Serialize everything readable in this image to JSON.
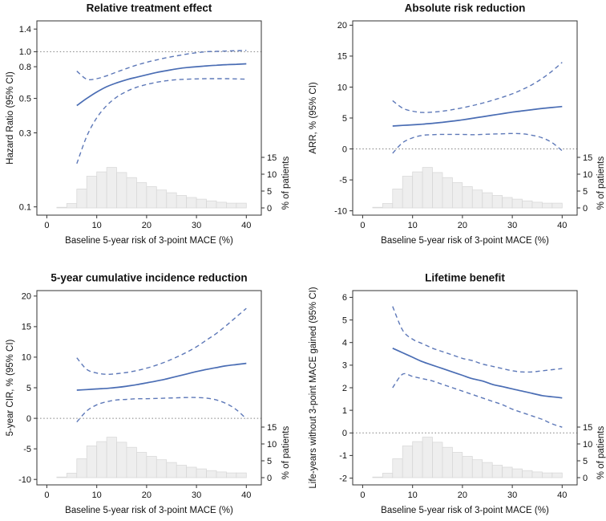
{
  "colors": {
    "line": "#4a6db4",
    "ci": "#5d78b8",
    "refline": "#808080",
    "hist_fill": "#eeeeee",
    "hist_stroke": "#d8d8d8",
    "border": "#333333",
    "text": "#111111"
  },
  "chart_data": {
    "layout": "2x2",
    "shared": {
      "xlabel": "Baseline 5-year risk of 3-point MACE (%)",
      "xticks": [
        0,
        10,
        20,
        30,
        40
      ],
      "xlim": [
        -2,
        43
      ],
      "x_values": [
        6,
        8,
        10,
        12,
        14,
        16,
        18,
        20,
        22,
        24,
        26,
        28,
        30,
        32,
        34,
        36,
        38,
        40
      ],
      "secondary_axis": {
        "label": "% of patients",
        "ticks": [
          0,
          5,
          10,
          15
        ]
      },
      "histogram": {
        "unit": "% of patients",
        "bin_start": 2,
        "bin_width": 2,
        "values": [
          0.2,
          1.3,
          5.6,
          9.4,
          10.7,
          12.0,
          10.5,
          9.0,
          7.5,
          6.3,
          5.3,
          4.5,
          3.7,
          3.1,
          2.6,
          2.1,
          1.7,
          1.4,
          1.4
        ]
      }
    },
    "panels": [
      {
        "type": "line",
        "title": "Relative treatment effect",
        "ylabel": "Hazard Ratio (95% CI)",
        "yscale": "log",
        "ylim": [
          0.0885,
          1.58
        ],
        "ytick_values": [
          1.4,
          1.0,
          0.8,
          0.5,
          0.3,
          0.1
        ],
        "ytick_labels": [
          "1.4",
          "1.0",
          "0.8",
          "0.5",
          "0.3",
          "0.1"
        ],
        "refline": 1.0,
        "series": [
          {
            "name": "point-estimate",
            "line": "solid",
            "y": [
              0.45,
              0.5,
              0.55,
              0.595,
              0.63,
              0.66,
              0.685,
              0.71,
              0.735,
              0.755,
              0.775,
              0.79,
              0.8,
              0.81,
              0.818,
              0.825,
              0.83,
              0.835
            ]
          },
          {
            "name": "upper-95-ci",
            "line": "dashed",
            "y": [
              0.75,
              0.665,
              0.67,
              0.7,
              0.74,
              0.78,
              0.82,
              0.855,
              0.885,
              0.915,
              0.94,
              0.965,
              0.985,
              1.0,
              1.005,
              1.01,
              1.015,
              1.02
            ]
          },
          {
            "name": "lower-95-ci",
            "line": "dashed",
            "y": [
              0.19,
              0.285,
              0.375,
              0.45,
              0.51,
              0.555,
              0.59,
              0.615,
              0.635,
              0.65,
              0.66,
              0.665,
              0.668,
              0.67,
              0.67,
              0.67,
              0.668,
              0.665
            ]
          }
        ]
      },
      {
        "type": "line",
        "title": "Absolute risk reduction",
        "ylabel": "ARR, % (95% CI)",
        "yscale": "linear",
        "ylim": [
          -10.7,
          20.7
        ],
        "ytick_values": [
          20,
          15,
          10,
          5,
          0,
          -5,
          -10
        ],
        "ytick_labels": [
          "20",
          "15",
          "10",
          "5",
          "0",
          "-5",
          "-10"
        ],
        "refline": 0,
        "series": [
          {
            "name": "point-estimate",
            "line": "solid",
            "y": [
              3.7,
              3.8,
              3.9,
              4.0,
              4.15,
              4.3,
              4.5,
              4.7,
              4.95,
              5.2,
              5.45,
              5.7,
              5.95,
              6.15,
              6.35,
              6.55,
              6.7,
              6.85
            ]
          },
          {
            "name": "upper-95-ci",
            "line": "dashed",
            "y": [
              7.8,
              6.6,
              6.1,
              5.9,
              5.95,
              6.1,
              6.35,
              6.65,
              7.0,
              7.4,
              7.85,
              8.35,
              8.9,
              9.6,
              10.4,
              11.4,
              12.6,
              14.0
            ]
          },
          {
            "name": "lower-95-ci",
            "line": "dashed",
            "y": [
              -0.7,
              1.0,
              1.8,
              2.2,
              2.3,
              2.35,
              2.35,
              2.35,
              2.3,
              2.35,
              2.4,
              2.45,
              2.5,
              2.45,
              2.2,
              1.8,
              1.0,
              -0.3
            ]
          }
        ]
      },
      {
        "type": "line",
        "title": "5-year cumulative incidence reduction",
        "ylabel": "5-year CIR, % (95% CI)",
        "yscale": "linear",
        "ylim": [
          -10.9,
          20.9
        ],
        "ytick_values": [
          20,
          15,
          10,
          5,
          0,
          -5,
          -10
        ],
        "ytick_labels": [
          "20",
          "15",
          "10",
          "5",
          "0",
          "-5",
          "-10"
        ],
        "refline": 0,
        "series": [
          {
            "name": "point-estimate",
            "line": "solid",
            "y": [
              4.6,
              4.7,
              4.8,
              4.9,
              5.05,
              5.25,
              5.5,
              5.8,
              6.1,
              6.45,
              6.85,
              7.25,
              7.65,
              8.0,
              8.3,
              8.6,
              8.8,
              9.0
            ]
          },
          {
            "name": "upper-95-ci",
            "line": "dashed",
            "y": [
              9.9,
              8.0,
              7.4,
              7.2,
              7.3,
              7.5,
              7.8,
              8.2,
              8.7,
              9.3,
              10.0,
              10.8,
              11.7,
              12.8,
              13.9,
              15.2,
              16.6,
              18.0
            ]
          },
          {
            "name": "lower-95-ci",
            "line": "dashed",
            "y": [
              -0.6,
              1.2,
              2.2,
              2.7,
              3.0,
              3.1,
              3.2,
              3.2,
              3.25,
              3.3,
              3.35,
              3.4,
              3.4,
              3.3,
              3.0,
              2.4,
              1.4,
              -0.1
            ]
          }
        ]
      },
      {
        "type": "line",
        "title": "Lifetime benefit",
        "ylabel": "Life-years without 3-point MACE gained (95% CI)",
        "yscale": "linear",
        "ylim": [
          -2.3,
          6.3
        ],
        "ytick_values": [
          6,
          5,
          4,
          3,
          2,
          1,
          0,
          -1,
          -2
        ],
        "ytick_labels": [
          "6",
          "5",
          "4",
          "3",
          "2",
          "1",
          "0",
          "-1",
          "-2"
        ],
        "refline": 0,
        "series": [
          {
            "name": "point-estimate",
            "line": "solid",
            "y": [
              3.75,
              3.55,
              3.35,
              3.15,
              3.0,
              2.85,
              2.7,
              2.55,
              2.4,
              2.3,
              2.15,
              2.05,
              1.95,
              1.85,
              1.75,
              1.65,
              1.6,
              1.55
            ]
          },
          {
            "name": "upper-95-ci",
            "line": "dashed",
            "y": [
              5.6,
              4.55,
              4.15,
              3.95,
              3.75,
              3.6,
              3.45,
              3.3,
              3.2,
              3.05,
              2.95,
              2.85,
              2.75,
              2.7,
              2.7,
              2.75,
              2.8,
              2.85
            ]
          },
          {
            "name": "lower-95-ci",
            "line": "dashed",
            "y": [
              2.0,
              2.6,
              2.5,
              2.4,
              2.3,
              2.15,
              2.0,
              1.85,
              1.7,
              1.55,
              1.4,
              1.25,
              1.05,
              0.9,
              0.75,
              0.6,
              0.4,
              0.25
            ]
          }
        ]
      }
    ]
  }
}
